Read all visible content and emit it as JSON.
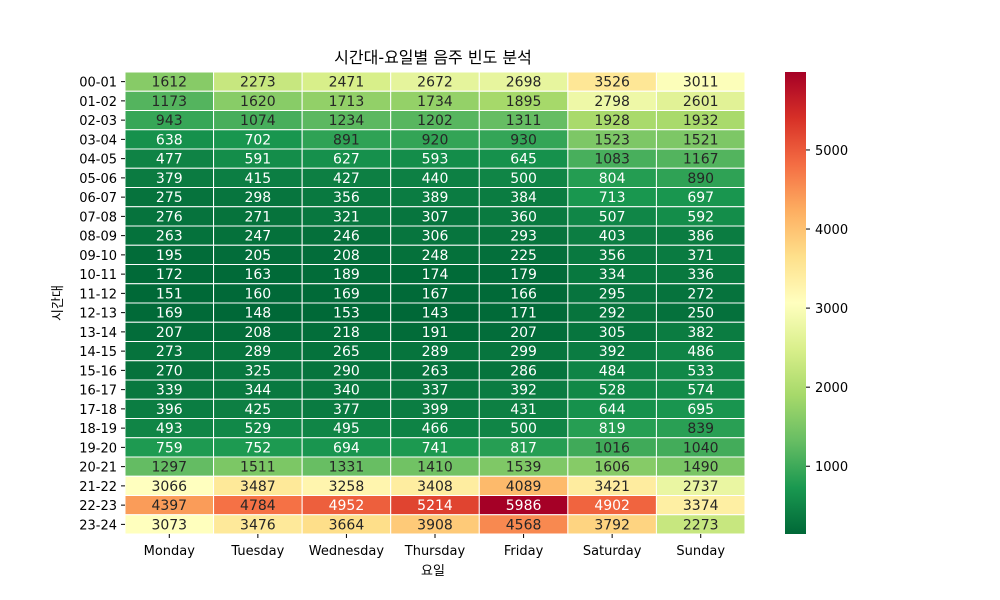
{
  "chart_data": {
    "type": "heatmap",
    "title": "시간대-요일별 음주 빈도 분석",
    "xlabel": "요일",
    "ylabel": "시간대",
    "x_categories": [
      "Monday",
      "Tuesday",
      "Wednesday",
      "Thursday",
      "Friday",
      "Saturday",
      "Sunday"
    ],
    "y_categories": [
      "00-01",
      "01-02",
      "02-03",
      "03-04",
      "04-05",
      "05-06",
      "06-07",
      "07-08",
      "08-09",
      "09-10",
      "10-11",
      "11-12",
      "12-13",
      "13-14",
      "14-15",
      "15-16",
      "16-17",
      "17-18",
      "18-19",
      "19-20",
      "20-21",
      "21-22",
      "22-23",
      "23-24"
    ],
    "values": [
      [
        1612,
        2273,
        2471,
        2672,
        2698,
        3526,
        3011
      ],
      [
        1173,
        1620,
        1713,
        1734,
        1895,
        2798,
        2601
      ],
      [
        943,
        1074,
        1234,
        1202,
        1311,
        1928,
        1932
      ],
      [
        638,
        702,
        891,
        920,
        930,
        1523,
        1521
      ],
      [
        477,
        591,
        627,
        593,
        645,
        1083,
        1167
      ],
      [
        379,
        415,
        427,
        440,
        500,
        804,
        890
      ],
      [
        275,
        298,
        356,
        389,
        384,
        713,
        697
      ],
      [
        276,
        271,
        321,
        307,
        360,
        507,
        592
      ],
      [
        263,
        247,
        246,
        306,
        293,
        403,
        386
      ],
      [
        195,
        205,
        208,
        248,
        225,
        356,
        371
      ],
      [
        172,
        163,
        189,
        174,
        179,
        334,
        336
      ],
      [
        151,
        160,
        169,
        167,
        166,
        295,
        272
      ],
      [
        169,
        148,
        153,
        143,
        171,
        292,
        250
      ],
      [
        207,
        208,
        218,
        191,
        207,
        305,
        382
      ],
      [
        273,
        289,
        265,
        289,
        299,
        392,
        486
      ],
      [
        270,
        325,
        290,
        263,
        286,
        484,
        533
      ],
      [
        339,
        344,
        340,
        337,
        392,
        528,
        574
      ],
      [
        396,
        425,
        377,
        399,
        431,
        644,
        695
      ],
      [
        493,
        529,
        495,
        466,
        500,
        819,
        839
      ],
      [
        759,
        752,
        694,
        741,
        817,
        1016,
        1040
      ],
      [
        1297,
        1511,
        1331,
        1410,
        1539,
        1606,
        1490
      ],
      [
        3066,
        3487,
        3258,
        3408,
        4089,
        3421,
        2737
      ],
      [
        4397,
        4784,
        4952,
        5214,
        5986,
        4902,
        3374
      ],
      [
        3073,
        3476,
        3664,
        3908,
        4568,
        3792,
        2273
      ]
    ],
    "colormap": "RdYlGn_r",
    "vmin": 143,
    "vmax": 5986,
    "colorbar_ticks": [
      1000,
      2000,
      3000,
      4000,
      5000
    ]
  }
}
